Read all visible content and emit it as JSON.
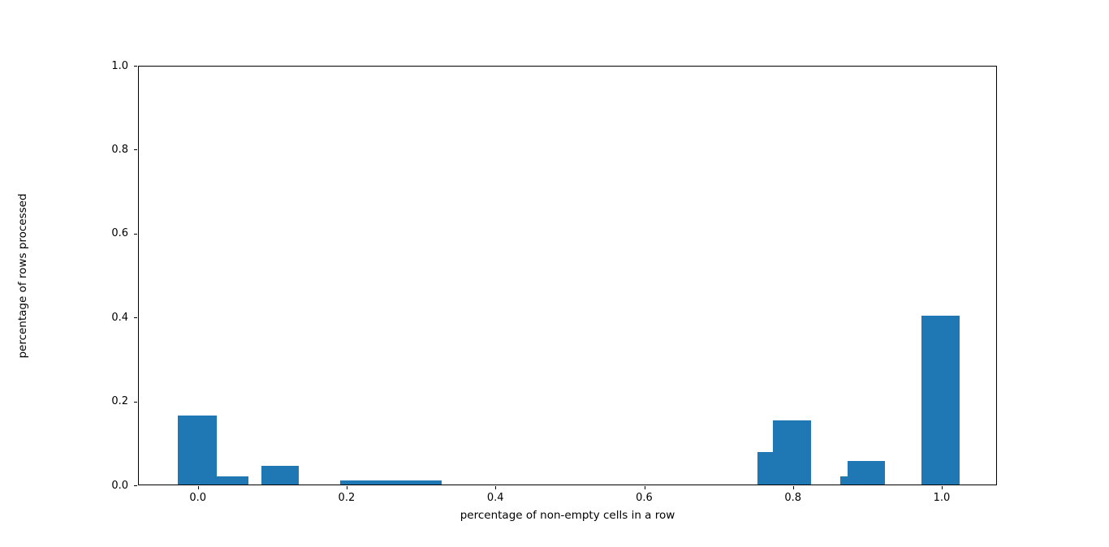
{
  "chart_data": {
    "type": "bar",
    "title": "",
    "xlabel": "percentage of non-empty cells in a row",
    "ylabel": "percentage of rows processed",
    "xlim": [
      -0.0804,
      1.0742
    ],
    "ylim": [
      0.0,
      1.0
    ],
    "xticks": [
      0.0,
      0.2,
      0.4,
      0.6,
      0.8,
      1.0
    ],
    "xtick_labels": [
      "0.0",
      "0.2",
      "0.4",
      "0.6",
      "0.8",
      "1.0"
    ],
    "yticks": [
      0.0,
      0.2,
      0.4,
      0.6,
      0.8,
      1.0
    ],
    "ytick_labels": [
      "0.0",
      "0.2",
      "0.4",
      "0.6",
      "0.8",
      "1.0"
    ],
    "grid": false,
    "legend": null,
    "bar_color": "#1f77b4",
    "bars": [
      {
        "x_left": -0.028,
        "x_right": 0.024,
        "height": 0.165
      },
      {
        "x_left": 0.024,
        "x_right": 0.067,
        "height": 0.019
      },
      {
        "x_left": 0.084,
        "x_right": 0.135,
        "height": 0.044
      },
      {
        "x_left": 0.19,
        "x_right": 0.327,
        "height": 0.01
      },
      {
        "x_left": 0.751,
        "x_right": 0.772,
        "height": 0.077
      },
      {
        "x_left": 0.772,
        "x_right": 0.823,
        "height": 0.152
      },
      {
        "x_left": 0.862,
        "x_right": 0.872,
        "height": 0.019
      },
      {
        "x_left": 0.872,
        "x_right": 0.923,
        "height": 0.057
      },
      {
        "x_left": 0.972,
        "x_right": 1.023,
        "height": 0.402
      }
    ]
  }
}
